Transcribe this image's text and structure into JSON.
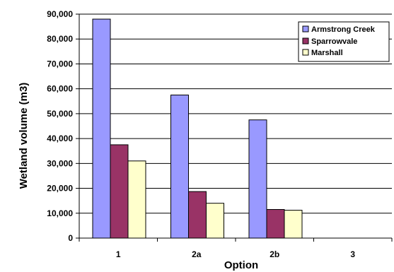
{
  "chart_data": {
    "type": "bar",
    "title": "",
    "xlabel": "Option",
    "ylabel": "Wetland volume (m3)",
    "categories": [
      "1",
      "2a",
      "2b",
      "3"
    ],
    "series": [
      {
        "name": "Armstrong Creek",
        "color": "#9999ff",
        "values": [
          88000,
          57500,
          47500,
          0
        ]
      },
      {
        "name": "Sparrowvale",
        "color": "#993366",
        "values": [
          37500,
          18700,
          11500,
          0
        ]
      },
      {
        "name": "Marshall",
        "color": "#ffffcc",
        "values": [
          31000,
          14000,
          11200,
          0
        ]
      }
    ],
    "ylim": [
      0,
      90000
    ],
    "yticks": [
      "0",
      "10,000",
      "20,000",
      "30,000",
      "40,000",
      "50,000",
      "60,000",
      "70,000",
      "80,000",
      "90,000"
    ],
    "grid": true,
    "legend_position": "top-right",
    "gridline_color": "#000000",
    "bar_outline_color": "#000000"
  }
}
